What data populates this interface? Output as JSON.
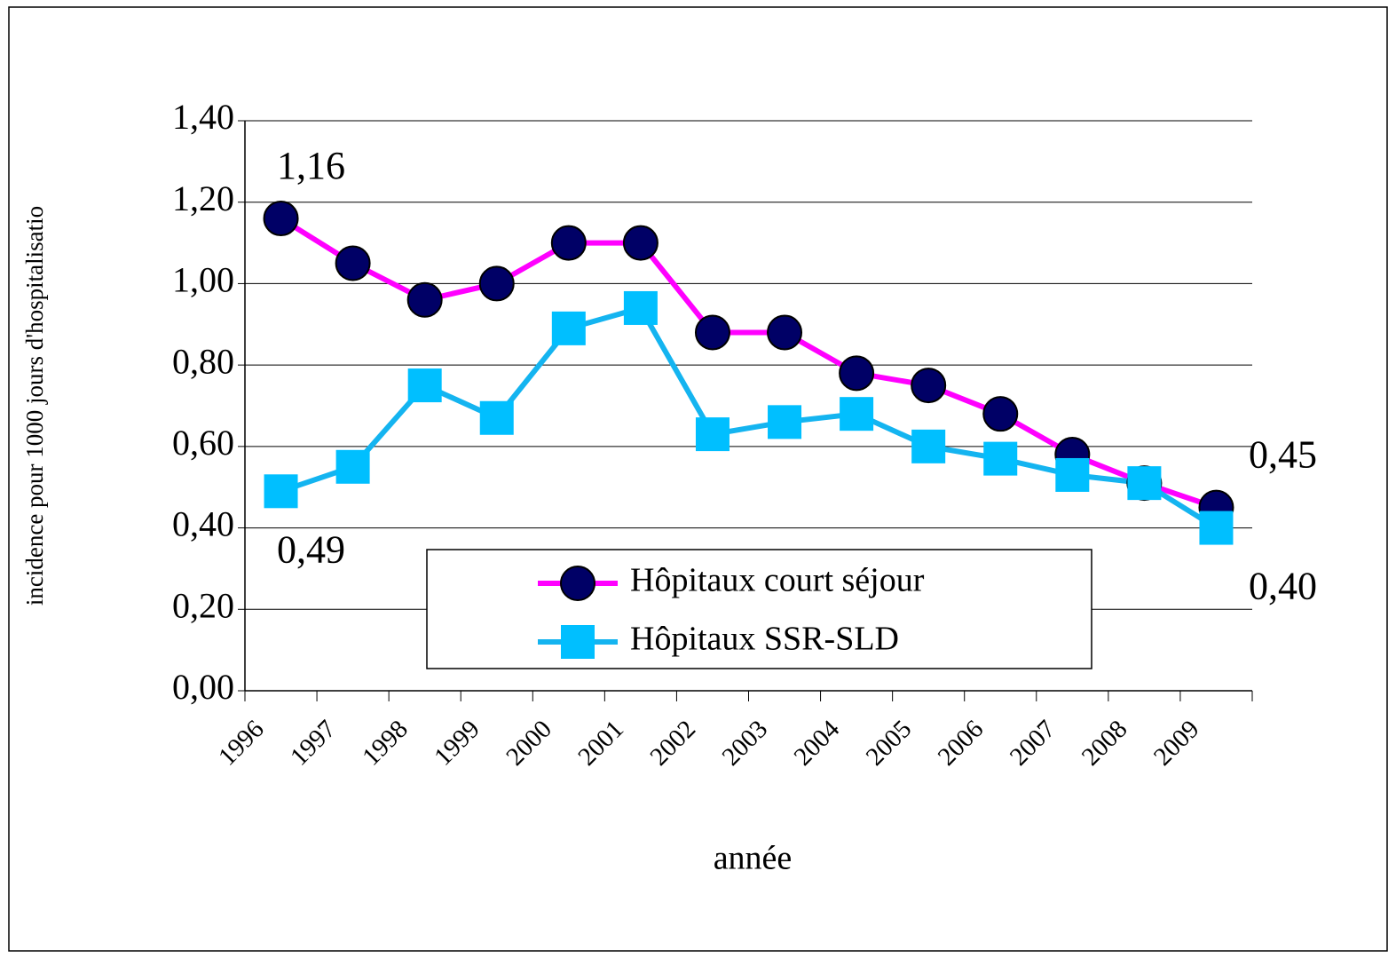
{
  "chart_data": {
    "type": "line",
    "y_label": "incidence pour 1000 jours d'hospitalisatio",
    "x_label": "année",
    "categories": [
      "1996",
      "1997",
      "1998",
      "1999",
      "2000",
      "2001",
      "2002",
      "2003",
      "2004",
      "2005",
      "2006",
      "2007",
      "2008",
      "2009"
    ],
    "series": [
      {
        "name": "Hôpitaux court séjour",
        "color": "#ff00ff",
        "marker_color": "#000066",
        "marker": "circle",
        "values": [
          1.16,
          1.05,
          0.96,
          1.0,
          1.1,
          1.1,
          0.88,
          0.88,
          0.78,
          0.75,
          0.68,
          0.58,
          0.51,
          0.45
        ],
        "value_labels": [
          "1,16",
          null,
          null,
          null,
          null,
          null,
          null,
          null,
          null,
          null,
          null,
          null,
          null,
          "0,45"
        ]
      },
      {
        "name": "Hôpitaux SSR-SLD",
        "color": "#14b4f0",
        "marker_color": "#00bfff",
        "marker": "square",
        "values": [
          0.49,
          0.55,
          0.75,
          0.67,
          0.89,
          0.94,
          0.63,
          0.66,
          0.68,
          0.6,
          0.57,
          0.53,
          0.51,
          0.4
        ],
        "value_labels": [
          "0,49",
          null,
          null,
          null,
          null,
          null,
          null,
          null,
          null,
          null,
          null,
          null,
          null,
          "0,40"
        ]
      }
    ],
    "ylim": [
      0,
      1.4
    ],
    "yticks": [
      {
        "value": 0,
        "label": "0,00"
      },
      {
        "value": 0.2,
        "label": "0,20"
      },
      {
        "value": 0.4,
        "label": "0,40"
      },
      {
        "value": 0.6,
        "label": "0,60"
      },
      {
        "value": 0.8,
        "label": "0,80"
      },
      {
        "value": 1.0,
        "label": "1,00"
      },
      {
        "value": 1.2,
        "label": "1,20"
      },
      {
        "value": 1.4,
        "label": "1,40"
      }
    ],
    "grid": true
  }
}
